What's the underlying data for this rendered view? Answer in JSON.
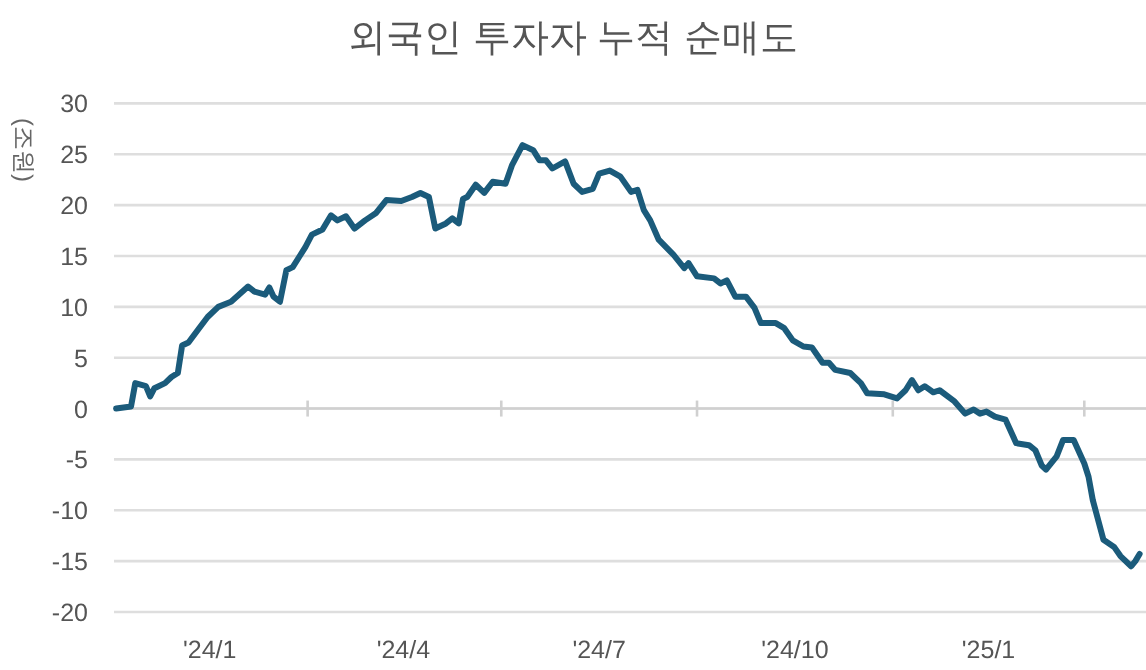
{
  "chart_data": {
    "type": "line",
    "title": "외국인 투자자 누적 순매도",
    "ylabel": "(조원)",
    "xlim": [
      "2024-01-01",
      "2025-04-30"
    ],
    "ylim": [
      -20,
      30
    ],
    "yticks": [
      -20,
      -15,
      -10,
      -5,
      0,
      5,
      10,
      15,
      20,
      25,
      30
    ],
    "xticks": [
      {
        "value": "2024-02-15",
        "label": "'24/1"
      },
      {
        "value": "2024-04-01",
        "label": null
      },
      {
        "value": "2024-05-16",
        "label": "'24/4"
      },
      {
        "value": "2024-07-01",
        "label": null
      },
      {
        "value": "2024-08-16",
        "label": "'24/7"
      },
      {
        "value": "2024-10-01",
        "label": null
      },
      {
        "value": "2024-11-16",
        "label": "'24/10"
      },
      {
        "value": "2025-01-01",
        "label": null
      },
      {
        "value": "2025-02-15",
        "label": "'25/1"
      },
      {
        "value": "2025-04-01",
        "label": null
      }
    ],
    "grid": "y",
    "series": [
      {
        "color": "#1b5b7b",
        "x": [
          "2024-01-02",
          "2024-01-09",
          "2024-01-11",
          "2024-01-16",
          "2024-01-18",
          "2024-01-20",
          "2024-01-25",
          "2024-01-28",
          "2024-01-31",
          "2024-02-02",
          "2024-02-05",
          "2024-02-10",
          "2024-02-14",
          "2024-02-19",
          "2024-02-25",
          "2024-03-04",
          "2024-03-07",
          "2024-03-12",
          "2024-03-14",
          "2024-03-16",
          "2024-03-19",
          "2024-03-22",
          "2024-03-25",
          "2024-03-28",
          "2024-03-31",
          "2024-04-03",
          "2024-04-08",
          "2024-04-12",
          "2024-04-15",
          "2024-04-19",
          "2024-04-23",
          "2024-04-28",
          "2024-05-03",
          "2024-05-08",
          "2024-05-15",
          "2024-05-20",
          "2024-05-24",
          "2024-05-28",
          "2024-05-31",
          "2024-06-05",
          "2024-06-08",
          "2024-06-11",
          "2024-06-13",
          "2024-06-15",
          "2024-06-19",
          "2024-06-23",
          "2024-06-27",
          "2024-07-03",
          "2024-07-06",
          "2024-07-11",
          "2024-07-16",
          "2024-07-19",
          "2024-07-22",
          "2024-07-25",
          "2024-07-31",
          "2024-08-04",
          "2024-08-08",
          "2024-08-13",
          "2024-08-16",
          "2024-08-21",
          "2024-08-26",
          "2024-08-31",
          "2024-09-03",
          "2024-09-06",
          "2024-09-09",
          "2024-09-13",
          "2024-09-20",
          "2024-09-25",
          "2024-09-27",
          "2024-10-01",
          "2024-10-09",
          "2024-10-12",
          "2024-10-15",
          "2024-10-19",
          "2024-10-24",
          "2024-10-28",
          "2024-10-31",
          "2024-11-07",
          "2024-11-11",
          "2024-11-15",
          "2024-11-20",
          "2024-11-24",
          "2024-11-29",
          "2024-12-02",
          "2024-12-05",
          "2024-12-12",
          "2024-12-17",
          "2024-12-20",
          "2024-12-28",
          "2025-01-03",
          "2025-01-07",
          "2025-01-10",
          "2025-01-13",
          "2025-01-16",
          "2025-01-20",
          "2025-01-23",
          "2025-01-30",
          "2025-02-04",
          "2025-02-08",
          "2025-02-11",
          "2025-02-14",
          "2025-02-18",
          "2025-02-23",
          "2025-02-28",
          "2025-03-06",
          "2025-03-09",
          "2025-03-12",
          "2025-03-14",
          "2025-03-19",
          "2025-03-22",
          "2025-03-27",
          "2025-04-01",
          "2025-04-03",
          "2025-04-05",
          "2025-04-10",
          "2025-04-15",
          "2025-04-18",
          "2025-04-23",
          "2025-04-25",
          "2025-04-27"
        ],
        "values": [
          0,
          0.2,
          2.5,
          2.2,
          1.2,
          2.0,
          2.5,
          3.1,
          3.5,
          6.2,
          6.5,
          7.9,
          9.0,
          10.0,
          10.5,
          12.0,
          11.5,
          11.2,
          11.9,
          11.0,
          10.5,
          13.6,
          13.9,
          14.9,
          15.9,
          17.1,
          17.6,
          19.0,
          18.5,
          18.9,
          17.7,
          18.5,
          19.2,
          20.5,
          20.4,
          20.8,
          21.2,
          20.8,
          17.7,
          18.2,
          18.7,
          18.2,
          20.6,
          20.8,
          22.0,
          21.2,
          22.3,
          22.1,
          23.9,
          25.9,
          25.4,
          24.4,
          24.4,
          23.6,
          24.3,
          22.1,
          21.3,
          21.6,
          23.1,
          23.4,
          22.8,
          21.3,
          21.5,
          19.5,
          18.5,
          16.6,
          15.1,
          13.8,
          14.3,
          13.0,
          12.8,
          12.3,
          12.6,
          11.0,
          11.0,
          9.9,
          8.4,
          8.4,
          7.9,
          6.7,
          6.1,
          6.0,
          4.5,
          4.5,
          3.8,
          3.5,
          2.5,
          1.5,
          1.4,
          1.0,
          1.8,
          2.8,
          1.8,
          2.2,
          1.6,
          1.8,
          0.7,
          -0.5,
          -0.1,
          -0.5,
          -0.3,
          -0.8,
          -1.1,
          -3.4,
          -3.6,
          -4.1,
          -5.6,
          -6.0,
          -4.7,
          -3.1,
          -3.1,
          -5.4,
          -6.7,
          -9.0,
          -12.9,
          -13.6,
          -14.5,
          -15.5,
          -15.0,
          -14.3
        ]
      }
    ]
  }
}
